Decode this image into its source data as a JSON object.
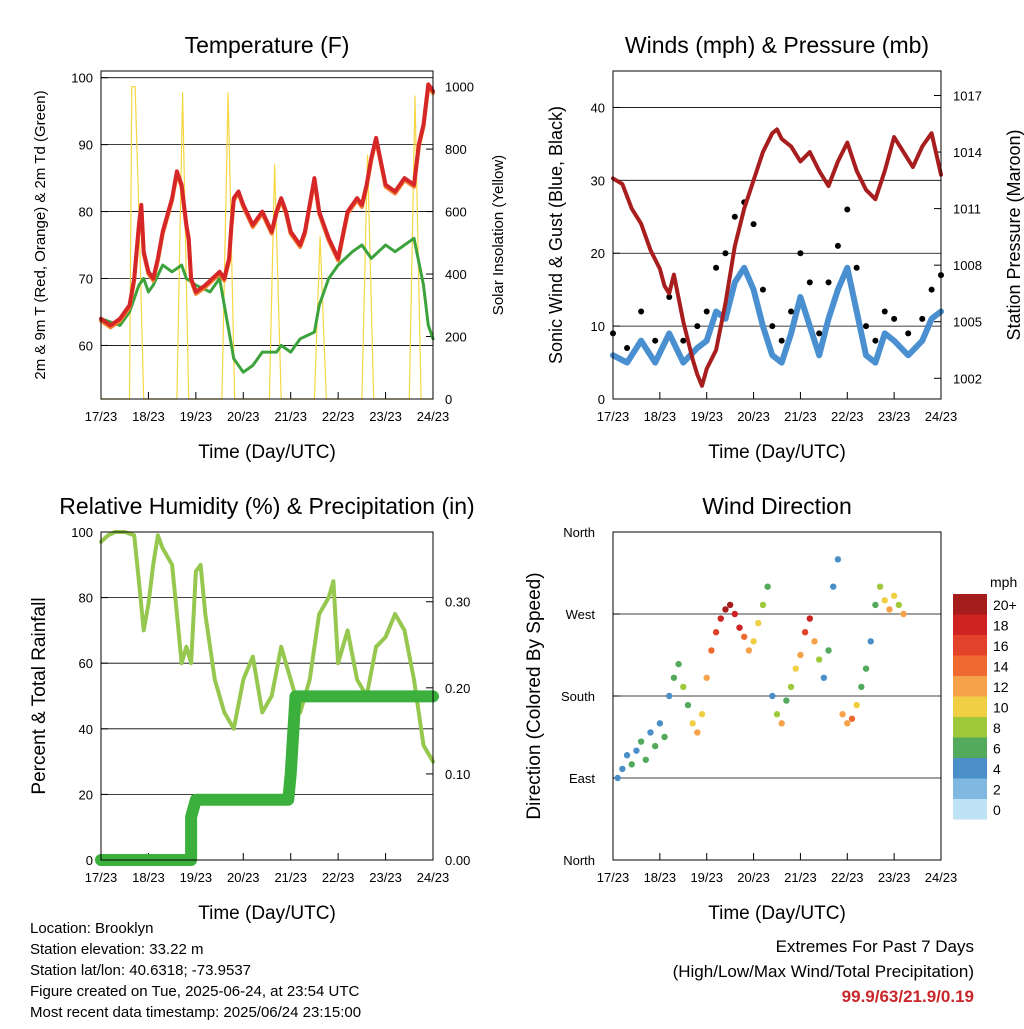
{
  "chart_data": [
    {
      "type": "line",
      "title": "Temperature (F)",
      "xlabel": "Time (Day/UTC)",
      "ylabel": "2m & 9m T (Red, Orange) & 2m Td (Green)",
      "y2label": "Solar Insolation (Yellow)",
      "x_ticks": [
        "17/23",
        "18/23",
        "19/23",
        "20/23",
        "21/23",
        "22/23",
        "23/23",
        "24/23"
      ],
      "ylim": [
        52,
        101
      ],
      "y_ticks": [
        60,
        70,
        80,
        90,
        100
      ],
      "y2lim": [
        0,
        1050
      ],
      "y2_ticks": [
        0,
        200,
        400,
        600,
        800,
        1000
      ],
      "colors": {
        "temp2m": "#d62728",
        "temp9m": "#f58231",
        "dewpoint": "#3ca33c",
        "solar": "#f5d742"
      },
      "series": [
        {
          "key": "temp2m",
          "x": [
            0,
            0.2,
            0.4,
            0.5,
            0.6,
            0.7,
            0.8,
            0.85,
            0.9,
            1.0,
            1.1,
            1.2,
            1.3,
            1.5,
            1.6,
            1.7,
            1.8,
            1.85,
            1.9,
            2.0,
            2.2,
            2.5,
            2.6,
            2.7,
            2.75,
            2.8,
            2.9,
            3.0,
            3.2,
            3.4,
            3.6,
            3.7,
            3.8,
            3.9,
            4.0,
            4.2,
            4.3,
            4.5,
            4.6,
            4.7,
            4.8,
            5.0,
            5.2,
            5.4,
            5.5,
            5.6,
            5.7,
            5.8,
            6.0,
            6.2,
            6.4,
            6.6,
            6.7,
            6.8,
            6.9,
            7.0
          ],
          "y": [
            64,
            63,
            64,
            65,
            66,
            70,
            78,
            81,
            74,
            71,
            70,
            73,
            77,
            82,
            86,
            84,
            78,
            76,
            70,
            68,
            69,
            71,
            70,
            73,
            78,
            82,
            83,
            81,
            78,
            80,
            77,
            80,
            82,
            80,
            77,
            75,
            77,
            85,
            80,
            78,
            76,
            73,
            80,
            82,
            81,
            84,
            88,
            91,
            84,
            83,
            85,
            84,
            90,
            93,
            99,
            98
          ]
        },
        {
          "key": "dewpoint",
          "x": [
            0,
            0.4,
            0.6,
            0.7,
            0.8,
            0.9,
            1.0,
            1.1,
            1.3,
            1.5,
            1.7,
            1.8,
            2.0,
            2.3,
            2.5,
            2.6,
            2.7,
            2.8,
            3.0,
            3.2,
            3.4,
            3.7,
            3.8,
            4.0,
            4.2,
            4.5,
            4.6,
            4.8,
            5.0,
            5.3,
            5.5,
            5.7,
            6.0,
            6.2,
            6.4,
            6.6,
            6.8,
            6.9,
            7.0
          ],
          "y": [
            64,
            63,
            65,
            67,
            69,
            70,
            68,
            69,
            72,
            71,
            72,
            70,
            69,
            68,
            70,
            66,
            62,
            58,
            56,
            57,
            59,
            59,
            60,
            59,
            61,
            62,
            66,
            70,
            72,
            74,
            75,
            73,
            75,
            74,
            75,
            76,
            69,
            63,
            61
          ]
        },
        {
          "key": "solar_peaks",
          "x": [
            0.0,
            0.6,
            0.65,
            0.72,
            0.8,
            0.9,
            1.6,
            1.72,
            1.85,
            2.55,
            2.68,
            2.82,
            3.55,
            3.66,
            3.8,
            4.5,
            4.62,
            4.75,
            5.5,
            5.62,
            5.75,
            6.5,
            6.62,
            6.75,
            6.9,
            7.0
          ],
          "y": [
            0,
            0,
            1000,
            1000,
            600,
            0,
            0,
            980,
            0,
            0,
            980,
            0,
            0,
            750,
            0,
            0,
            520,
            0,
            0,
            780,
            0,
            0,
            970,
            0,
            0,
            0
          ]
        }
      ]
    },
    {
      "type": "scatter",
      "title": "Winds (mph) & Pressure (mb)",
      "xlabel": "Time (Day/UTC)",
      "ylabel": "Sonic Wind & Gust (Blue, Black)",
      "y2label": "Station Pressure (Maroon)",
      "x_ticks": [
        "17/23",
        "18/23",
        "19/23",
        "20/23",
        "21/23",
        "22/23",
        "23/23",
        "24/23"
      ],
      "ylim": [
        0,
        45
      ],
      "y_ticks": [
        0,
        10,
        20,
        30,
        40
      ],
      "y2lim": [
        1000.9,
        1018.3
      ],
      "y2_ticks": [
        1002,
        1005,
        1008,
        1011,
        1014,
        1017
      ],
      "colors": {
        "wind": "#4a90d0",
        "gust": "#000000",
        "pressure": "#a81e1e"
      },
      "series": [
        {
          "key": "wind",
          "x": [
            0,
            0.3,
            0.6,
            0.9,
            1.2,
            1.5,
            1.8,
            2.0,
            2.2,
            2.4,
            2.6,
            2.8,
            3.0,
            3.2,
            3.4,
            3.6,
            3.8,
            4.0,
            4.2,
            4.4,
            4.6,
            4.8,
            5.0,
            5.2,
            5.4,
            5.6,
            5.8,
            6.0,
            6.3,
            6.6,
            6.8,
            7.0
          ],
          "y": [
            6,
            5,
            8,
            5,
            9,
            5,
            7,
            8,
            12,
            11,
            16,
            18,
            15,
            10,
            6,
            5,
            9,
            14,
            10,
            6,
            11,
            15,
            18,
            12,
            6,
            5,
            9,
            8,
            6,
            8,
            11,
            12
          ]
        },
        {
          "key": "gust",
          "x": [
            0,
            0.3,
            0.6,
            0.9,
            1.2,
            1.5,
            1.8,
            2.0,
            2.2,
            2.4,
            2.6,
            2.8,
            3.0,
            3.2,
            3.4,
            3.6,
            3.8,
            4.0,
            4.2,
            4.4,
            4.6,
            4.8,
            5.0,
            5.2,
            5.4,
            5.6,
            5.8,
            6.0,
            6.3,
            6.6,
            6.8,
            7.0
          ],
          "y": [
            9,
            7,
            12,
            8,
            14,
            8,
            10,
            12,
            18,
            20,
            25,
            27,
            24,
            15,
            10,
            8,
            12,
            20,
            16,
            9,
            16,
            21,
            26,
            18,
            10,
            8,
            12,
            11,
            9,
            11,
            15,
            17
          ]
        },
        {
          "key": "pressure",
          "x": [
            0,
            0.2,
            0.4,
            0.6,
            0.8,
            1.0,
            1.1,
            1.2,
            1.3,
            1.5,
            1.7,
            1.8,
            1.9,
            2.0,
            2.2,
            2.4,
            2.6,
            2.8,
            3.0,
            3.2,
            3.4,
            3.5,
            3.6,
            3.8,
            4.0,
            4.2,
            4.4,
            4.6,
            4.8,
            5.0,
            5.2,
            5.4,
            5.6,
            5.8,
            6.0,
            6.2,
            6.4,
            6.6,
            6.8,
            7.0
          ],
          "y": [
            1012.6,
            1012.3,
            1011.0,
            1010.2,
            1008.8,
            1007.8,
            1006.9,
            1006.5,
            1007.5,
            1005.0,
            1003.0,
            1002.2,
            1001.6,
            1002.5,
            1003.5,
            1006.0,
            1009.0,
            1011.0,
            1012.5,
            1014.0,
            1015.0,
            1015.2,
            1014.7,
            1014.3,
            1013.5,
            1014.0,
            1013.0,
            1012.2,
            1013.5,
            1014.5,
            1013.0,
            1012.0,
            1011.5,
            1013.0,
            1014.8,
            1014.0,
            1013.2,
            1014.3,
            1015.0,
            1012.8
          ]
        }
      ]
    },
    {
      "type": "line",
      "title": "Relative Humidity (%) & Precipitation (in)",
      "xlabel": "Time (Day/UTC)",
      "ylabel": "Percent & Total Rainfall",
      "x_ticks": [
        "17/23",
        "18/23",
        "19/23",
        "20/23",
        "21/23",
        "22/23",
        "23/23",
        "24/23"
      ],
      "ylim": [
        0,
        100
      ],
      "y_ticks": [
        0,
        20,
        40,
        60,
        80,
        100
      ],
      "y2lim": [
        0,
        0.381
      ],
      "y2_ticks": [
        "0.00",
        "0.10",
        "0.20",
        "0.30"
      ],
      "colors": {
        "rh": "#96c850",
        "precip": "#3cb03c"
      },
      "series": [
        {
          "key": "rh",
          "x": [
            0,
            0.15,
            0.3,
            0.5,
            0.7,
            0.8,
            0.9,
            1.0,
            1.1,
            1.2,
            1.3,
            1.5,
            1.6,
            1.7,
            1.8,
            1.9,
            2.0,
            2.1,
            2.2,
            2.4,
            2.6,
            2.8,
            3.0,
            3.2,
            3.4,
            3.6,
            3.8,
            4.0,
            4.2,
            4.4,
            4.6,
            4.8,
            4.9,
            5.0,
            5.2,
            5.4,
            5.6,
            5.8,
            6.0,
            6.2,
            6.4,
            6.6,
            6.8,
            7.0
          ],
          "y": [
            97,
            99,
            100,
            100,
            99,
            85,
            70,
            78,
            90,
            99,
            95,
            90,
            75,
            60,
            65,
            60,
            88,
            90,
            75,
            55,
            45,
            40,
            55,
            62,
            45,
            50,
            65,
            55,
            45,
            55,
            75,
            80,
            85,
            60,
            70,
            55,
            50,
            65,
            68,
            75,
            70,
            55,
            35,
            30
          ]
        },
        {
          "key": "precip",
          "x": [
            0,
            1.9,
            1.9,
            2.0,
            3.95,
            4.0,
            4.1,
            7.0
          ],
          "y": [
            0,
            0,
            0.05,
            0.07,
            0.07,
            0.1,
            0.19,
            0.19
          ]
        }
      ]
    },
    {
      "type": "scatter",
      "title": "Wind Direction",
      "xlabel": "Time (Day/UTC)",
      "ylabel": "Direction (Colored By Speed)",
      "x_ticks": [
        "17/23",
        "18/23",
        "19/23",
        "20/23",
        "21/23",
        "22/23",
        "23/23",
        "24/23"
      ],
      "y_ticks": [
        "North",
        "East",
        "South",
        "West",
        "North"
      ],
      "ylim": [
        0,
        360
      ],
      "legend_title": "mph",
      "legend_labels": [
        "20+",
        "18",
        "16",
        "14",
        "12",
        "10",
        "8",
        "6",
        "4",
        "2",
        "0"
      ],
      "legend_colors": [
        "#a51c1c",
        "#cf2222",
        "#e3422a",
        "#ef6a30",
        "#f6a24a",
        "#f1cf44",
        "#9fc93a",
        "#53a95c",
        "#4a8fc7",
        "#7fb8e1",
        "#bfe2f5"
      ],
      "points": [
        {
          "x": 0.1,
          "d": 90,
          "s": 4
        },
        {
          "x": 0.2,
          "d": 100,
          "s": 3
        },
        {
          "x": 0.3,
          "d": 115,
          "s": 4
        },
        {
          "x": 0.4,
          "d": 105,
          "s": 5
        },
        {
          "x": 0.5,
          "d": 120,
          "s": 3
        },
        {
          "x": 0.6,
          "d": 130,
          "s": 5
        },
        {
          "x": 0.7,
          "d": 110,
          "s": 6
        },
        {
          "x": 0.8,
          "d": 140,
          "s": 4
        },
        {
          "x": 0.9,
          "d": 125,
          "s": 5
        },
        {
          "x": 1.0,
          "d": 150,
          "s": 4
        },
        {
          "x": 1.1,
          "d": 135,
          "s": 6
        },
        {
          "x": 1.2,
          "d": 180,
          "s": 4
        },
        {
          "x": 1.3,
          "d": 200,
          "s": 5
        },
        {
          "x": 1.4,
          "d": 215,
          "s": 6
        },
        {
          "x": 1.5,
          "d": 190,
          "s": 8
        },
        {
          "x": 1.6,
          "d": 170,
          "s": 6
        },
        {
          "x": 1.7,
          "d": 150,
          "s": 9
        },
        {
          "x": 1.8,
          "d": 140,
          "s": 11
        },
        {
          "x": 1.9,
          "d": 160,
          "s": 10
        },
        {
          "x": 2.0,
          "d": 200,
          "s": 12
        },
        {
          "x": 2.1,
          "d": 230,
          "s": 13
        },
        {
          "x": 2.2,
          "d": 250,
          "s": 15
        },
        {
          "x": 2.3,
          "d": 265,
          "s": 17
        },
        {
          "x": 2.4,
          "d": 275,
          "s": 19
        },
        {
          "x": 2.5,
          "d": 280,
          "s": 20
        },
        {
          "x": 2.6,
          "d": 270,
          "s": 18
        },
        {
          "x": 2.7,
          "d": 255,
          "s": 17
        },
        {
          "x": 2.8,
          "d": 245,
          "s": 14
        },
        {
          "x": 2.9,
          "d": 230,
          "s": 12
        },
        {
          "x": 3.0,
          "d": 240,
          "s": 10
        },
        {
          "x": 3.1,
          "d": 260,
          "s": 9
        },
        {
          "x": 3.2,
          "d": 280,
          "s": 7
        },
        {
          "x": 3.3,
          "d": 300,
          "s": 5
        },
        {
          "x": 3.4,
          "d": 180,
          "s": 4
        },
        {
          "x": 3.5,
          "d": 160,
          "s": 8
        },
        {
          "x": 3.6,
          "d": 150,
          "s": 12
        },
        {
          "x": 3.7,
          "d": 175,
          "s": 6
        },
        {
          "x": 3.8,
          "d": 190,
          "s": 7
        },
        {
          "x": 3.9,
          "d": 210,
          "s": 10
        },
        {
          "x": 4.0,
          "d": 225,
          "s": 12
        },
        {
          "x": 4.1,
          "d": 250,
          "s": 15
        },
        {
          "x": 4.2,
          "d": 265,
          "s": 18
        },
        {
          "x": 4.3,
          "d": 240,
          "s": 11
        },
        {
          "x": 4.4,
          "d": 220,
          "s": 7
        },
        {
          "x": 4.5,
          "d": 200,
          "s": 4
        },
        {
          "x": 4.6,
          "d": 230,
          "s": 6
        },
        {
          "x": 4.7,
          "d": 300,
          "s": 4
        },
        {
          "x": 4.8,
          "d": 330,
          "s": 3
        },
        {
          "x": 4.9,
          "d": 160,
          "s": 11
        },
        {
          "x": 5.0,
          "d": 150,
          "s": 12
        },
        {
          "x": 5.1,
          "d": 155,
          "s": 13
        },
        {
          "x": 5.2,
          "d": 170,
          "s": 9
        },
        {
          "x": 5.3,
          "d": 190,
          "s": 6
        },
        {
          "x": 5.4,
          "d": 210,
          "s": 5
        },
        {
          "x": 5.5,
          "d": 240,
          "s": 4
        },
        {
          "x": 5.6,
          "d": 280,
          "s": 6
        },
        {
          "x": 5.7,
          "d": 300,
          "s": 8
        },
        {
          "x": 5.8,
          "d": 285,
          "s": 10
        },
        {
          "x": 5.9,
          "d": 275,
          "s": 12
        },
        {
          "x": 6.0,
          "d": 290,
          "s": 9
        },
        {
          "x": 6.1,
          "d": 280,
          "s": 7
        },
        {
          "x": 6.2,
          "d": 270,
          "s": 11
        }
      ]
    }
  ],
  "footer": {
    "location": "Location: Brooklyn",
    "elevation": "Station elevation: 33.22 m",
    "latlon": "Station lat/lon: 40.6318; -73.9537",
    "created": "Figure created on Tue, 2025-06-24, at 23:54 UTC",
    "latest": "Most recent data timestamp: 2025/06/24 23:15:00",
    "extremes_title": "Extremes For Past 7 Days",
    "extremes_subtitle": "(High/Low/Max Wind/Total Precipitation)",
    "extremes_values": "99.9/63/21.9/0.19"
  }
}
